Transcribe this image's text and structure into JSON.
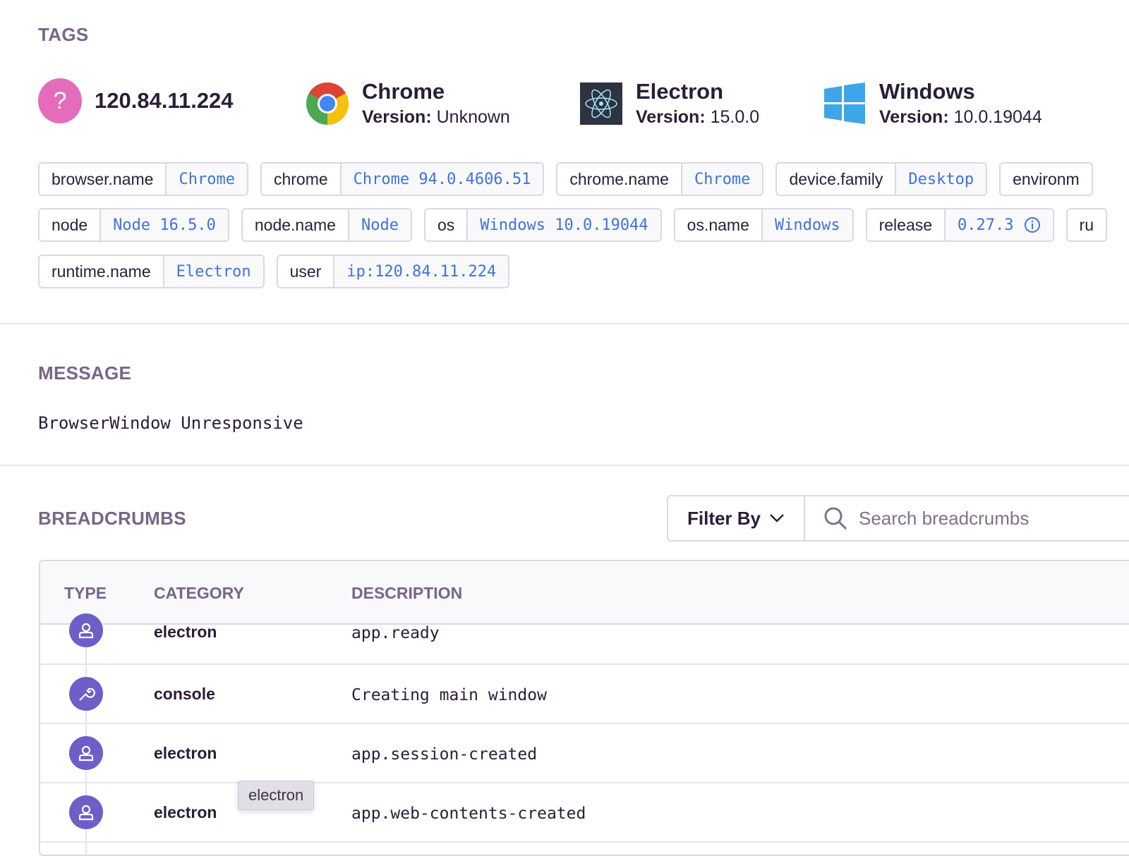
{
  "tags_section": {
    "heading": "TAGS",
    "context": [
      {
        "icon": "unknown-user-icon",
        "title": "120.84.11.224"
      },
      {
        "icon": "chrome-icon",
        "title": "Chrome",
        "version_label": "Version:",
        "version": "Unknown"
      },
      {
        "icon": "electron-icon",
        "title": "Electron",
        "version_label": "Version:",
        "version": "15.0.0"
      },
      {
        "icon": "windows-icon",
        "title": "Windows",
        "version_label": "Version:",
        "version": "10.0.19044"
      }
    ],
    "tags": [
      {
        "key": "browser.name",
        "value": "Chrome"
      },
      {
        "key": "chrome",
        "value": "Chrome 94.0.4606.51"
      },
      {
        "key": "chrome.name",
        "value": "Chrome"
      },
      {
        "key": "device.family",
        "value": "Desktop"
      },
      {
        "key": "environm",
        "value": ""
      },
      {
        "key": "node",
        "value": "Node 16.5.0"
      },
      {
        "key": "node.name",
        "value": "Node"
      },
      {
        "key": "os",
        "value": "Windows 10.0.19044"
      },
      {
        "key": "os.name",
        "value": "Windows"
      },
      {
        "key": "release",
        "value": "0.27.3"
      },
      {
        "key": "ru",
        "value": ""
      },
      {
        "key": "runtime.name",
        "value": "Electron"
      },
      {
        "key": "user",
        "value": "ip:120.84.11.224"
      }
    ]
  },
  "message_section": {
    "heading": "MESSAGE",
    "text": "BrowserWindow Unresponsive"
  },
  "breadcrumbs": {
    "heading": "BREADCRUMBS",
    "filter_label": "Filter By",
    "search_placeholder": "Search breadcrumbs",
    "columns": [
      "TYPE",
      "CATEGORY",
      "DESCRIPTION"
    ],
    "rows": [
      {
        "icon": "user-icon",
        "category": "electron",
        "description": "app.ready"
      },
      {
        "icon": "wrench-icon",
        "category": "console",
        "description": "Creating main window"
      },
      {
        "icon": "user-icon",
        "category": "electron",
        "description": "app.session-created"
      },
      {
        "icon": "user-icon",
        "category": "electron",
        "description": "app.web-contents-created"
      }
    ],
    "tooltip": "electron"
  },
  "colors": {
    "accent": "#6c5fc7",
    "link": "#3d74db",
    "heading": "#776589"
  }
}
